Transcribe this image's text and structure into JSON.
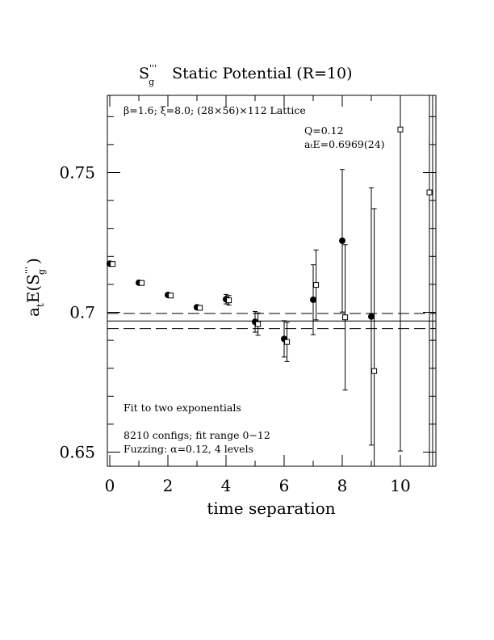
{
  "chart_data": {
    "type": "scatter",
    "title_main": "S",
    "title_sub": "g",
    "title_sup": "'''",
    "title_rest": "Static Potential (R=10)",
    "xlabel": "time separation",
    "ylabel_main": "a",
    "ylabel_t": "t",
    "ylabel_e": "E(S",
    "ylabel_sub": "g",
    "ylabel_sup": "'''",
    "ylabel_close": ")",
    "xlim": [
      0,
      11
    ],
    "ylim": [
      0.644,
      0.777
    ],
    "xticks": [
      0,
      2,
      4,
      6,
      8,
      10
    ],
    "xtick_labels": [
      "0",
      "2",
      "4",
      "6",
      "8",
      "10"
    ],
    "yticks": [
      0.65,
      0.7,
      0.75
    ],
    "ytick_labels": [
      "0.65",
      "0.7",
      "0.75"
    ],
    "annotations": {
      "lattice": "β=1.6; ξ=8.0; (28×56)×112 Lattice",
      "q": "Q=0.12",
      "energy": "aₜE=0.6969(24)",
      "fit": "Fit to two exponentials",
      "configs": "8210 configs; fit range 0−12",
      "fuzzing": "Fuzzing: α=0.12, 4 levels"
    },
    "fit": {
      "value": 0.6969,
      "error": 0.0024,
      "band_low": 0.6942,
      "band_high": 0.6996
    },
    "series": [
      {
        "marker": "filled-circle",
        "points": [
          {
            "x": 0,
            "y": 0.7174,
            "err": 0.0005
          },
          {
            "x": 1,
            "y": 0.7106,
            "err": 0.0006
          },
          {
            "x": 2,
            "y": 0.7062,
            "err": 0.0007
          },
          {
            "x": 3,
            "y": 0.7018,
            "err": 0.0008
          },
          {
            "x": 4,
            "y": 0.7047,
            "err": 0.0017
          },
          {
            "x": 5,
            "y": 0.6966,
            "err": 0.0037
          },
          {
            "x": 6,
            "y": 0.6905,
            "err": 0.0065
          },
          {
            "x": 7,
            "y": 0.7045,
            "err": 0.0125
          },
          {
            "x": 8,
            "y": 0.7256,
            "err": 0.0255
          },
          {
            "x": 9,
            "y": 0.6985,
            "err": 0.046
          }
        ]
      },
      {
        "marker": "open-square",
        "points": [
          {
            "x": 0.1,
            "y": 0.7173,
            "err": 0.0005
          },
          {
            "x": 1.1,
            "y": 0.7105,
            "err": 0.0006
          },
          {
            "x": 2.1,
            "y": 0.706,
            "err": 0.0007
          },
          {
            "x": 3.1,
            "y": 0.7016,
            "err": 0.0008
          },
          {
            "x": 4.1,
            "y": 0.7043,
            "err": 0.0017
          },
          {
            "x": 5.1,
            "y": 0.6958,
            "err": 0.004
          },
          {
            "x": 6.1,
            "y": 0.6894,
            "err": 0.007
          },
          {
            "x": 7.1,
            "y": 0.7098,
            "err": 0.0125
          },
          {
            "x": 8.1,
            "y": 0.6982,
            "err": 0.026
          },
          {
            "x": 9.1,
            "y": 0.679,
            "err": 0.058
          },
          {
            "x": 10.0,
            "y": 0.7654,
            "err": 0.115
          },
          {
            "x": 11.0,
            "y": 0.7429,
            "err": 0.15
          }
        ]
      }
    ]
  }
}
